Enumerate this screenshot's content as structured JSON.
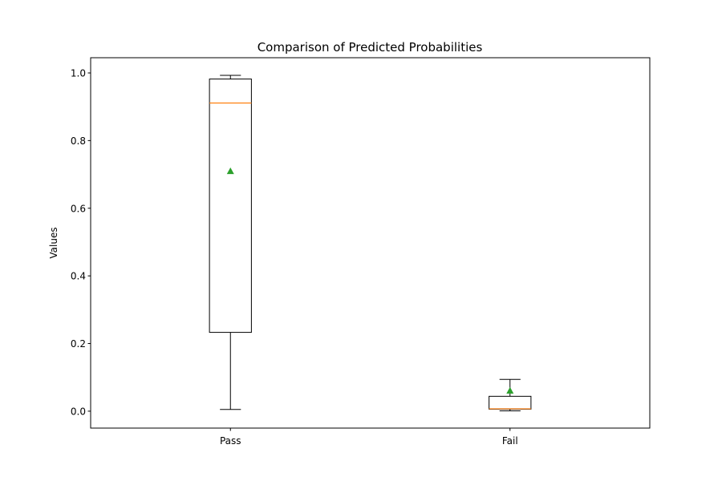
{
  "chart_data": {
    "type": "box",
    "title": "Comparison of Predicted Probabilities",
    "xlabel": "",
    "ylabel": "Values",
    "categories": [
      "Pass",
      "Fail"
    ],
    "ylim": [
      -0.05,
      1.045
    ],
    "yticks": [
      0.0,
      0.2,
      0.4,
      0.6,
      0.8,
      1.0
    ],
    "ytick_labels": [
      "0.0",
      "0.2",
      "0.4",
      "0.6",
      "0.8",
      "1.0"
    ],
    "grid": false,
    "boxes": [
      {
        "category": "Pass",
        "whisker_low": 0.005,
        "q1": 0.233,
        "median": 0.911,
        "q3": 0.982,
        "whisker_high": 0.993,
        "mean": 0.71
      },
      {
        "category": "Fail",
        "whisker_low": 0.001,
        "q1": 0.006,
        "median": 0.007,
        "q3": 0.044,
        "whisker_high": 0.094,
        "mean": 0.061
      }
    ],
    "colors": {
      "box": "#000000",
      "median": "#ff7f0e",
      "mean": "#2ca02c"
    }
  }
}
